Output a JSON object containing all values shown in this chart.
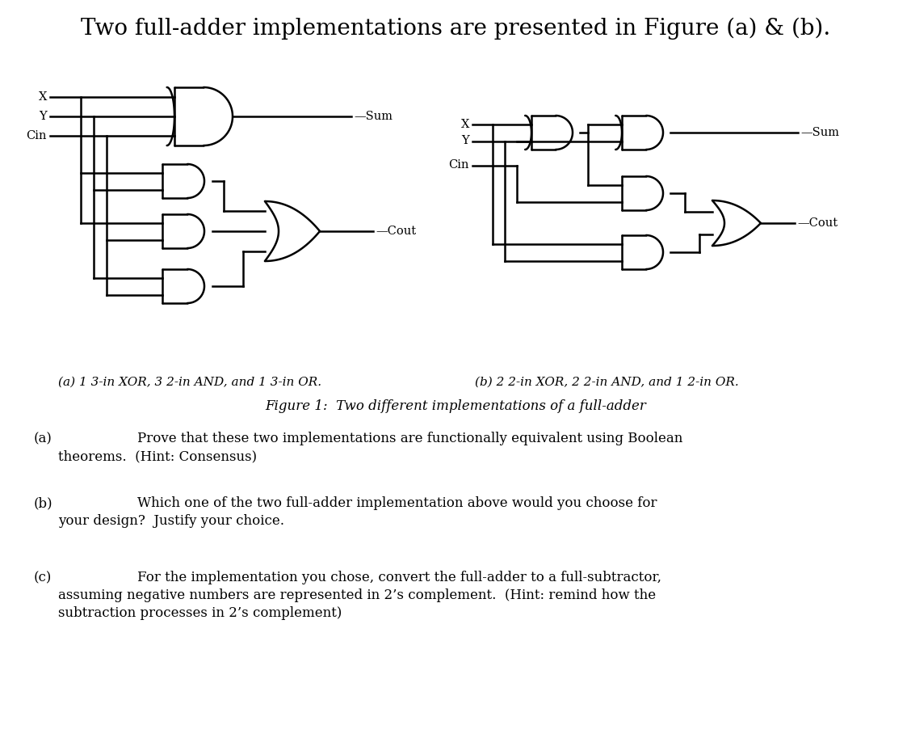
{
  "title": "Two full-adder implementations are presented in Figure (a) & (b).",
  "title_fontsize": 20,
  "background_color": "#ffffff",
  "text_color": "#000000",
  "caption_a": "(a) 1 3-in XOR, 3 2-in AND, and 1 3-in OR.",
  "caption_b": "(b) 2 2-in XOR, 2 2-in AND, and 1 2-in OR.",
  "figure_caption": "Figure 1:  Two different implementations of a full-adder",
  "part_a_label": "(a)",
  "part_b_label": "(b)",
  "part_c_label": "(c)",
  "part_a_text_line1": "Prove that these two implementations are functionally equivalent using Boolean",
  "part_a_text_line2": "theorems.  (Hint: Consensus)",
  "part_b_text_line1": "Which one of the two full-adder implementation above would you choose for",
  "part_b_text_line2": "your design?  Justify your choice.",
  "part_c_text_line1": "For the implementation you chose, convert the full-adder to a full-subtractor,",
  "part_c_text_line2": "assuming negative numbers are represented in 2’s complement.  (Hint: remind how the",
  "part_c_text_line3": "subtraction processes in 2’s complement)"
}
